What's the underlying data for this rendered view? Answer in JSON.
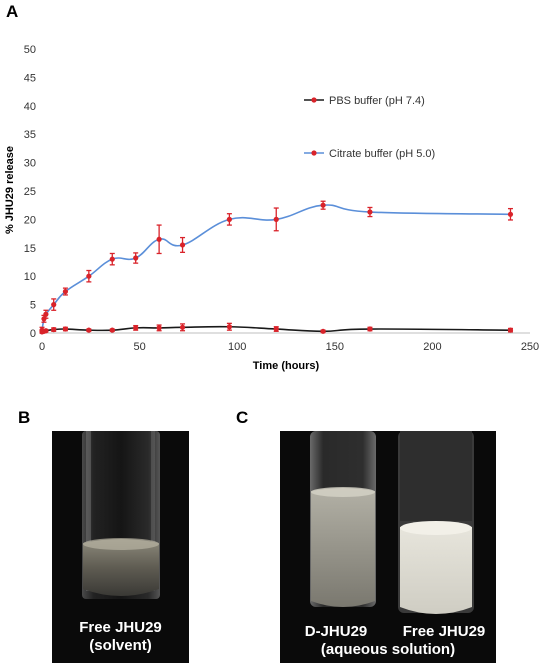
{
  "panels": {
    "a_label": "A",
    "b_label": "B",
    "c_label": "C"
  },
  "chart_data": {
    "type": "line",
    "xlabel": "Time (hours)",
    "ylabel": "% JHU29 release",
    "xlim": [
      0,
      250
    ],
    "ylim": [
      0,
      50
    ],
    "xticks": [
      0,
      50,
      100,
      150,
      200,
      250
    ],
    "yticks": [
      0,
      5,
      10,
      15,
      20,
      25,
      30,
      35,
      40,
      45,
      50
    ],
    "grid": false,
    "legend_position": "top-right",
    "series": [
      {
        "name": "PBS buffer (pH 7.4)",
        "line_color": "#1a1a1a",
        "marker_color": "#d9232a",
        "x": [
          0,
          1,
          2,
          6,
          12,
          24,
          36,
          48,
          60,
          72,
          96,
          120,
          144,
          168,
          240
        ],
        "y": [
          0.2,
          0.3,
          0.4,
          0.6,
          0.7,
          0.5,
          0.5,
          0.9,
          0.9,
          1.0,
          1.1,
          0.7,
          0.3,
          0.7,
          0.5
        ],
        "err": [
          0.2,
          0.2,
          0.2,
          0.3,
          0.3,
          0.2,
          0.2,
          0.4,
          0.5,
          0.6,
          0.6,
          0.4,
          0.2,
          0.3,
          0.3
        ]
      },
      {
        "name": "Citrate buffer (pH 5.0)",
        "line_color": "#5b8fd9",
        "marker_color": "#d9232a",
        "x": [
          0,
          1,
          2,
          6,
          12,
          24,
          36,
          48,
          60,
          72,
          96,
          120,
          144,
          168,
          240
        ],
        "y": [
          0.5,
          2.5,
          3.3,
          5.0,
          7.3,
          10.0,
          13.0,
          13.2,
          16.5,
          15.5,
          20.0,
          20.0,
          22.5,
          21.3,
          20.9
        ],
        "err": [
          0.5,
          0.6,
          0.7,
          1.0,
          0.6,
          1.0,
          1.0,
          0.9,
          2.5,
          1.3,
          1.0,
          2.0,
          0.7,
          0.8,
          1.0
        ]
      }
    ]
  },
  "photo_b": {
    "caption_line1": "Free JHU29",
    "caption_line2": "(solvent)"
  },
  "photo_c": {
    "label_left": "D-JHU29",
    "label_right": "Free JHU29",
    "caption_line2": "(aqueous solution)"
  }
}
